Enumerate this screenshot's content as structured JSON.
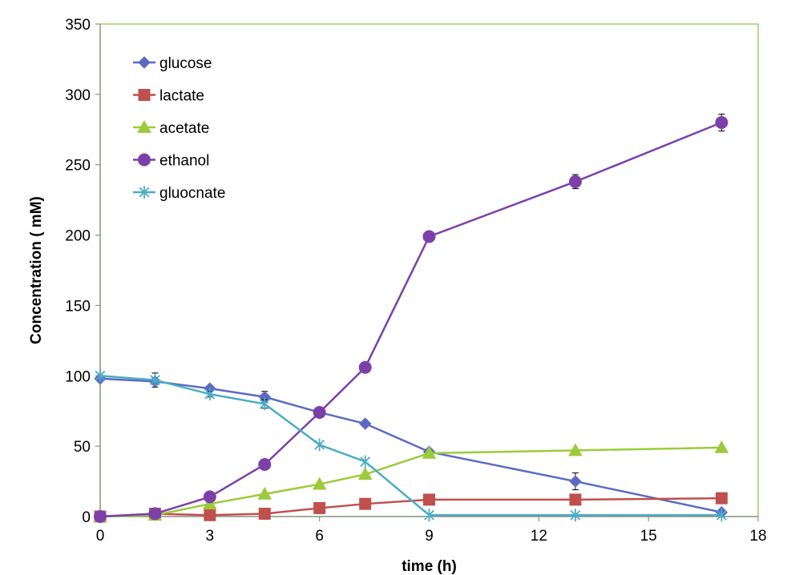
{
  "chart_data": {
    "type": "line",
    "title": "",
    "xlabel": "time (h)",
    "ylabel": "Concentration ( mM)",
    "xlim": [
      0,
      18
    ],
    "ylim": [
      0,
      350
    ],
    "xticks": [
      0,
      3,
      6,
      9,
      12,
      15,
      18
    ],
    "yticks": [
      0,
      50,
      100,
      150,
      200,
      250,
      300,
      350
    ],
    "grid": false,
    "legend_position": "top-left",
    "frame_color": "#9BD16B",
    "series": [
      {
        "name": "glucose",
        "color": "#5B6BC2",
        "marker": "diamond",
        "x": [
          0,
          1.5,
          3,
          4.5,
          6,
          7.25,
          9,
          13,
          17
        ],
        "y": [
          98,
          96,
          91,
          85,
          74,
          66,
          46,
          25,
          3
        ],
        "err": [
          0,
          2,
          2,
          4,
          0,
          0,
          0,
          6,
          0
        ]
      },
      {
        "name": "lactate",
        "color": "#C0504D",
        "marker": "square",
        "x": [
          0,
          1.5,
          3,
          4.5,
          6,
          7.25,
          9,
          13,
          17
        ],
        "y": [
          0,
          2,
          1,
          2,
          6,
          9,
          12,
          12,
          13
        ],
        "err": [
          0,
          0,
          0,
          0,
          0,
          0,
          0,
          0,
          0
        ]
      },
      {
        "name": "acetate",
        "color": "#9BCB3B",
        "marker": "triangle",
        "x": [
          0,
          1.5,
          3,
          4.5,
          6,
          7.25,
          9,
          13,
          17
        ],
        "y": [
          0,
          1,
          9,
          16,
          23,
          30,
          45,
          47,
          49
        ],
        "err": [
          0,
          0,
          0,
          0,
          0,
          0,
          0,
          0,
          0
        ]
      },
      {
        "name": "ethanol",
        "color": "#7D3FA8",
        "marker": "circle",
        "x": [
          0,
          1.5,
          3,
          4.5,
          6,
          7.25,
          9,
          13,
          17
        ],
        "y": [
          0,
          2,
          14,
          37,
          74,
          106,
          199,
          238,
          280
        ],
        "err": [
          0,
          0,
          0,
          0,
          0,
          0,
          0,
          5,
          6
        ]
      },
      {
        "name": "gluocnate",
        "color": "#4BACC6",
        "marker": "asterisk",
        "x": [
          0,
          1.5,
          3,
          4.5,
          6,
          7.25,
          9,
          13,
          17
        ],
        "y": [
          100,
          97,
          87,
          80,
          51,
          39,
          1,
          1,
          1
        ],
        "err": [
          0,
          5,
          2,
          3,
          0,
          0,
          0,
          0,
          0
        ]
      }
    ]
  }
}
